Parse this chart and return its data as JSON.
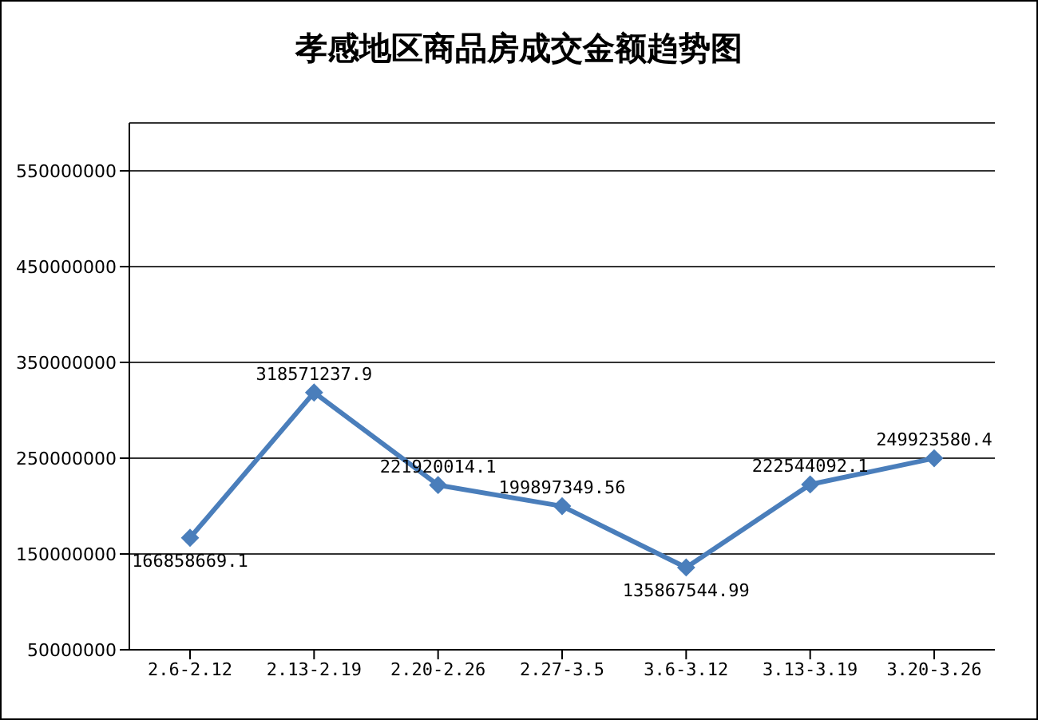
{
  "chart_data": {
    "type": "line",
    "title": "孝感地区商品房成交金额趋势图",
    "categories": [
      "2.6-2.12",
      "2.13-2.19",
      "2.20-2.26",
      "2.27-3.5",
      "3.6-3.12",
      "3.13-3.19",
      "3.20-3.26"
    ],
    "series": [
      {
        "color": "#4a7ebb",
        "values": [
          166858669.1,
          318571237.9,
          221920014.1,
          199897349.56,
          135867544.99,
          222544092.1,
          249923580.4
        ]
      }
    ],
    "ylim": [
      50000000,
      600000000
    ],
    "yticks": [
      50000000,
      150000000,
      250000000,
      350000000,
      450000000,
      550000000
    ],
    "grid": "y",
    "marker": "diamond",
    "data_labels": true,
    "legend": false
  }
}
